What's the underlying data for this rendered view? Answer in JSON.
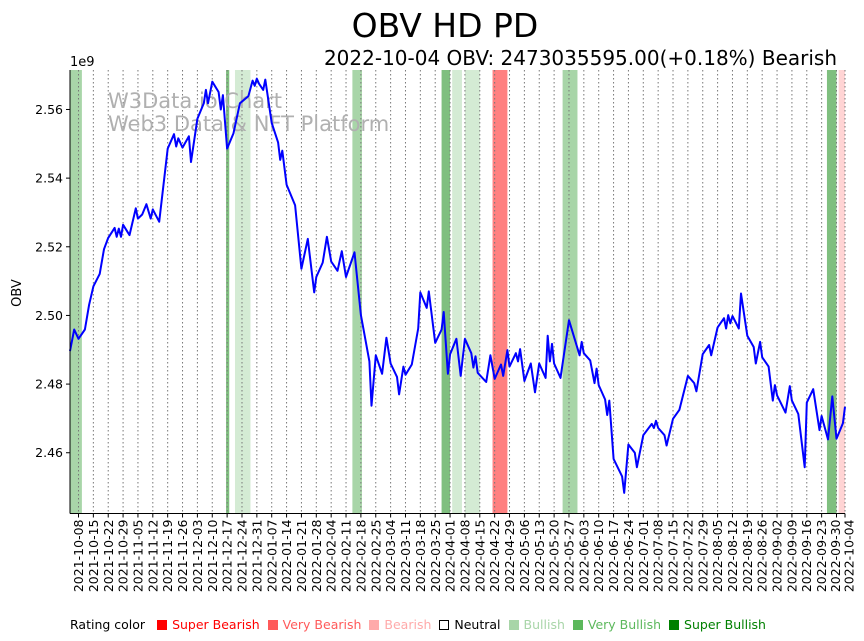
{
  "chart_data": {
    "type": "line",
    "title": "OBV HD PD",
    "subtitle": "2022-10-04 OBV: 2473035595.00(+0.18%) Bearish",
    "ylabel": "OBV",
    "y_multiplier_label": "1e9",
    "ylim": [
      2.4423,
      2.5715
    ],
    "xlim": [
      0,
      365
    ],
    "y_ticks": [
      {
        "value": 2.46,
        "label": "2.46"
      },
      {
        "value": 2.48,
        "label": "2.48"
      },
      {
        "value": 2.5,
        "label": "2.50"
      },
      {
        "value": 2.52,
        "label": "2.52"
      },
      {
        "value": 2.54,
        "label": "2.54"
      },
      {
        "value": 2.56,
        "label": "2.56"
      }
    ],
    "x_ticks": [
      "2021-10-08",
      "2021-10-15",
      "2021-10-22",
      "2021-10-29",
      "2021-11-05",
      "2021-11-12",
      "2021-11-19",
      "2021-11-26",
      "2021-12-03",
      "2021-12-10",
      "2021-12-17",
      "2021-12-24",
      "2021-12-31",
      "2022-01-07",
      "2022-01-14",
      "2022-01-21",
      "2022-01-28",
      "2022-02-04",
      "2022-02-11",
      "2022-02-18",
      "2022-02-25",
      "2022-03-04",
      "2022-03-11",
      "2022-03-18",
      "2022-03-25",
      "2022-04-01",
      "2022-04-08",
      "2022-04-15",
      "2022-04-22",
      "2022-04-29",
      "2022-05-06",
      "2022-05-13",
      "2022-05-20",
      "2022-05-27",
      "2022-06-03",
      "2022-06-10",
      "2022-06-17",
      "2022-06-24",
      "2022-07-01",
      "2022-07-08",
      "2022-07-15",
      "2022-07-22",
      "2022-07-29",
      "2022-08-05",
      "2022-08-12",
      "2022-08-19",
      "2022-08-26",
      "2022-09-02",
      "2022-09-09",
      "2022-09-16",
      "2022-09-23",
      "2022-09-30",
      "2022-10-04"
    ],
    "x_tick_days": [
      4,
      11,
      18,
      25,
      32,
      39,
      46,
      53,
      60,
      67,
      74,
      81,
      88,
      95,
      102,
      109,
      116,
      123,
      130,
      137,
      144,
      151,
      158,
      165,
      172,
      179,
      186,
      193,
      200,
      207,
      214,
      221,
      228,
      235,
      242,
      249,
      256,
      263,
      270,
      277,
      284,
      291,
      298,
      305,
      312,
      319,
      326,
      333,
      340,
      347,
      354,
      361,
      365
    ],
    "grid": "vertical-dotted",
    "series": [
      {
        "name": "OBV",
        "color": "#0000ff",
        "x": [
          0,
          2,
          4,
          7,
          9,
          11,
          14,
          16,
          18,
          21,
          22,
          23,
          24,
          25,
          28,
          31,
          32,
          34,
          36,
          38,
          39,
          42,
          46,
          49,
          50,
          51,
          53,
          56,
          57,
          60,
          63,
          64,
          65,
          67,
          70,
          71,
          72,
          74,
          77,
          80,
          84,
          86,
          87,
          88,
          89,
          91,
          92,
          95,
          98,
          99,
          100,
          102,
          106,
          109,
          112,
          115,
          116,
          119,
          121,
          123,
          126,
          128,
          130,
          134,
          137,
          141,
          142,
          144,
          147,
          149,
          151,
          154,
          155,
          157,
          158,
          161,
          164,
          165,
          168,
          169,
          172,
          175,
          176,
          178,
          179,
          182,
          184,
          186,
          189,
          190,
          191,
          192,
          196,
          198,
          200,
          203,
          204,
          206,
          207,
          210,
          211,
          212,
          214,
          217,
          219,
          221,
          224,
          225,
          226,
          227,
          228,
          231,
          235,
          240,
          241,
          242,
          245,
          247,
          248,
          249,
          252,
          253,
          254,
          256,
          260,
          261,
          263,
          266,
          267,
          270,
          274,
          275,
          276,
          277,
          280,
          281,
          284,
          287,
          291,
          294,
          295,
          298,
          301,
          302,
          305,
          308,
          309,
          310,
          311,
          312,
          315,
          316,
          319,
          322,
          323,
          325,
          326,
          329,
          331,
          332,
          333,
          337,
          339,
          340,
          343,
          346,
          347,
          350,
          353,
          354,
          357,
          359,
          361,
          364,
          365
        ],
        "values": [
          2.4896,
          2.4959,
          2.4932,
          2.4959,
          2.5031,
          2.5085,
          2.5121,
          2.5193,
          2.5226,
          2.5255,
          2.5229,
          2.5253,
          2.5229,
          2.5264,
          2.5234,
          2.5312,
          2.5282,
          2.5294,
          2.5324,
          2.5282,
          2.5309,
          2.5273,
          2.5486,
          2.5528,
          2.5492,
          2.5516,
          2.5489,
          2.5522,
          2.5447,
          2.5573,
          2.5618,
          2.5657,
          2.5618,
          2.5681,
          2.5651,
          2.56,
          2.5642,
          2.5486,
          2.5531,
          2.5618,
          2.5639,
          2.5684,
          2.5669,
          2.569,
          2.5675,
          2.5657,
          2.5687,
          2.5561,
          2.5504,
          2.5453,
          2.548,
          2.5381,
          2.5321,
          2.5136,
          2.5223,
          2.5067,
          2.5112,
          2.5154,
          2.5229,
          2.5157,
          2.513,
          2.5187,
          2.5112,
          2.5184,
          2.5001,
          2.4866,
          2.4737,
          2.4884,
          2.483,
          2.4935,
          2.486,
          2.4821,
          2.477,
          2.4851,
          2.4827,
          2.4857,
          2.4962,
          2.5067,
          2.5022,
          2.507,
          2.492,
          2.4959,
          2.501,
          2.483,
          2.4887,
          2.4932,
          2.4824,
          2.4932,
          2.489,
          2.4848,
          2.4881,
          2.4833,
          2.4806,
          2.4884,
          2.4815,
          2.4857,
          2.4824,
          2.4899,
          2.4851,
          2.489,
          2.4866,
          2.4902,
          2.4809,
          2.486,
          2.4776,
          2.486,
          2.4818,
          2.4941,
          2.4866,
          2.4917,
          2.486,
          2.4818,
          2.4986,
          2.4884,
          2.4923,
          2.489,
          2.4869,
          2.4803,
          2.4845,
          2.4797,
          2.4755,
          2.471,
          2.4752,
          2.4582,
          2.4531,
          2.4483,
          2.4624,
          2.46,
          2.4558,
          2.4651,
          2.4684,
          2.4672,
          2.4693,
          2.4672,
          2.4651,
          2.4621,
          2.4699,
          2.4725,
          2.4824,
          2.4803,
          2.4779,
          2.4887,
          2.4914,
          2.4884,
          2.4965,
          2.4992,
          2.4962,
          2.5001,
          2.4977,
          2.4998,
          2.4962,
          2.5064,
          2.4941,
          2.4908,
          2.486,
          2.4923,
          2.4878,
          2.4851,
          2.4752,
          2.4797,
          2.4767,
          2.4717,
          2.4794,
          2.4752,
          2.4713,
          2.4558,
          2.4746,
          2.4785,
          2.4666,
          2.4707,
          2.4639,
          2.4764,
          2.4641,
          2.4686,
          2.4734
        ]
      }
    ],
    "rating_bands": [
      {
        "start": 0,
        "end": 5.6,
        "rating": "Very Bullish",
        "color": "#a8d5a8"
      },
      {
        "start": 73.5,
        "end": 75,
        "rating": "Super Bullish",
        "color": "#7fbf7f"
      },
      {
        "start": 77.7,
        "end": 85,
        "rating": "Bullish",
        "color": "#d4ebd4"
      },
      {
        "start": 133,
        "end": 137.5,
        "rating": "Very Bullish",
        "color": "#a8d5a8"
      },
      {
        "start": 175,
        "end": 179,
        "rating": "Super Bullish",
        "color": "#7fbf7f"
      },
      {
        "start": 180,
        "end": 184.6,
        "rating": "Bullish",
        "color": "#d4ebd4"
      },
      {
        "start": 186,
        "end": 193,
        "rating": "Bullish",
        "color": "#d4ebd4"
      },
      {
        "start": 199,
        "end": 206,
        "rating": "Very Bearish",
        "color": "#ff8080"
      },
      {
        "start": 232,
        "end": 239,
        "rating": "Very Bullish",
        "color": "#a8d5a8"
      },
      {
        "start": 356.5,
        "end": 361,
        "rating": "Super Bullish",
        "color": "#7fbf7f"
      },
      {
        "start": 362,
        "end": 365,
        "rating": "Bearish",
        "color": "#ffd4d4"
      }
    ],
    "watermark": [
      "W3Data.io Chart",
      "Web3 Data & NFT Platform"
    ]
  },
  "legend": {
    "title": "Rating color",
    "items": [
      {
        "label": "Super Bearish",
        "color": "#ff0000",
        "text_color": "#ff0000"
      },
      {
        "label": "Very Bearish",
        "color": "#ff5a5a",
        "text_color": "#ff5a5a"
      },
      {
        "label": "Bearish",
        "color": "#ffaaaa",
        "text_color": "#ffaaaa"
      },
      {
        "label": "Neutral",
        "color": "#ffffff",
        "text_color": "#000000"
      },
      {
        "label": "Bullish",
        "color": "#a8d5a8",
        "text_color": "#a8d5a8"
      },
      {
        "label": "Very Bullish",
        "color": "#5cb85c",
        "text_color": "#5cb85c"
      },
      {
        "label": "Super Bullish",
        "color": "#008000",
        "text_color": "#008000"
      }
    ]
  }
}
